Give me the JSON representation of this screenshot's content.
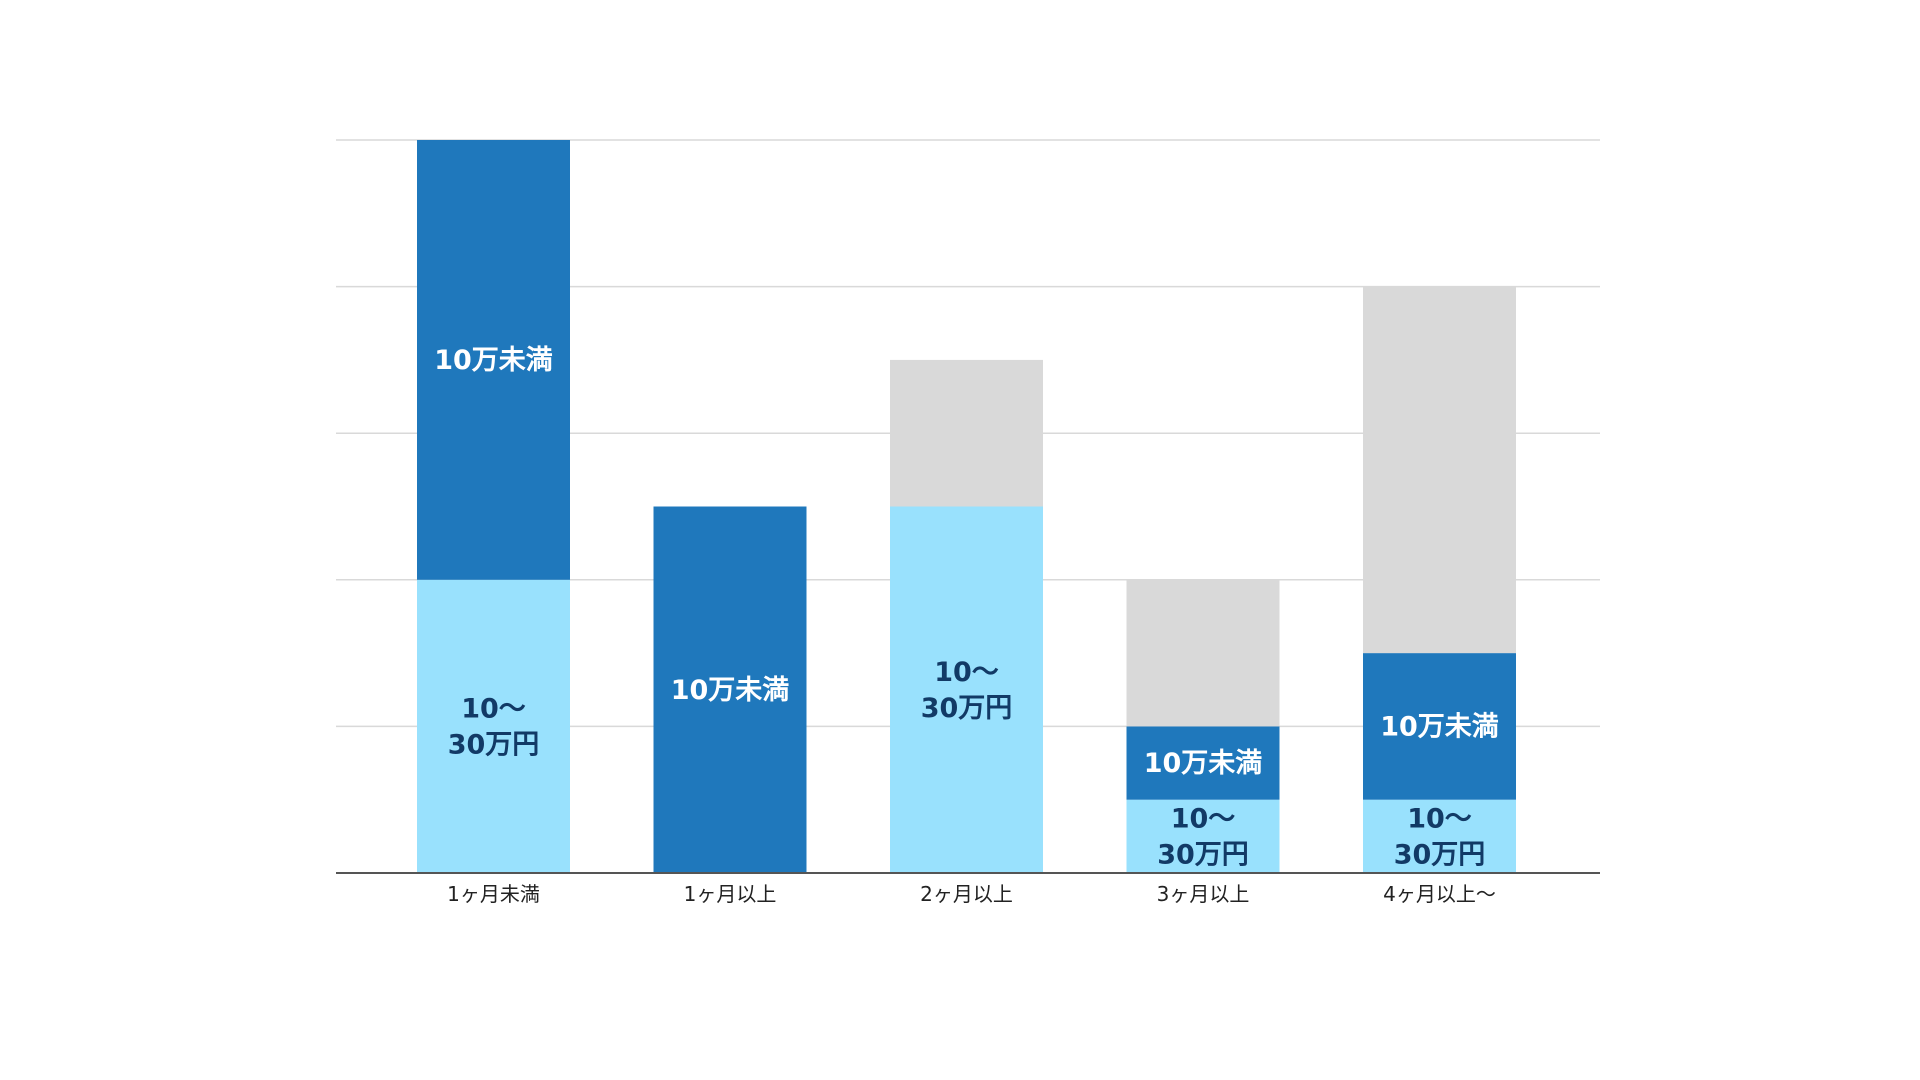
{
  "chart_data": {
    "type": "bar",
    "stacked": true,
    "title": "",
    "xlabel": "",
    "ylabel": "",
    "ylim": [
      0,
      5
    ],
    "grid": true,
    "categories": [
      "1ヶ月未満",
      "1ヶ月以上",
      "2ヶ月以上",
      "3ヶ月以上",
      "4ヶ月以上〜"
    ],
    "series": [
      {
        "name": "",
        "color": "#99e1fd",
        "label_color": "#123a66",
        "values": [
          2,
          0,
          2.5,
          0.5,
          0.5
        ],
        "segment_labels": [
          "10〜\n30万円",
          "",
          "10〜\n30万円",
          "10〜\n30万円",
          "10〜\n30万円"
        ]
      },
      {
        "name": "",
        "color": "#1f78bc",
        "label_color": "#ffffff",
        "values": [
          3,
          2.5,
          0,
          0.5,
          1
        ],
        "segment_labels": [
          "10万未満",
          "10万未満",
          "",
          "10万未満",
          "10万未満"
        ]
      },
      {
        "name": "",
        "color": "#d9d9d9",
        "label_color": "#ffffff",
        "values": [
          0,
          0,
          1,
          1,
          2.5
        ],
        "segment_labels": [
          "",
          "",
          "",
          "",
          ""
        ]
      }
    ]
  }
}
